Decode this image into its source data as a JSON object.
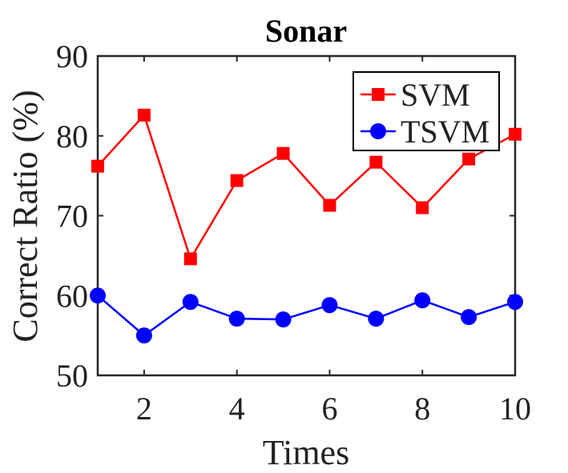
{
  "chart_data": {
    "type": "line",
    "title": "Sonar",
    "xlabel": "Times",
    "ylabel": "Correct Ratio (%)",
    "xlim": [
      1,
      10
    ],
    "ylim": [
      50,
      90
    ],
    "xticks": [
      2,
      4,
      6,
      8,
      10
    ],
    "yticks": [
      50,
      60,
      70,
      80,
      90
    ],
    "grid": false,
    "legend_position": "top-right",
    "x": [
      1,
      2,
      3,
      4,
      5,
      6,
      7,
      8,
      9,
      10
    ],
    "series": [
      {
        "name": "SVM",
        "color": "#ff0000",
        "marker": "square",
        "values": [
          76.2,
          82.6,
          64.6,
          74.4,
          77.8,
          71.3,
          76.7,
          71.0,
          77.1,
          80.2
        ]
      },
      {
        "name": "TSVM",
        "color": "#0000ff",
        "marker": "circle",
        "values": [
          60.0,
          55.0,
          59.2,
          57.1,
          57.0,
          58.8,
          57.1,
          59.4,
          57.3,
          59.2
        ]
      }
    ]
  }
}
